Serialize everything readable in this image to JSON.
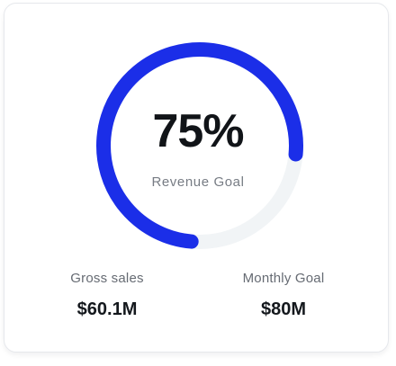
{
  "gauge": {
    "percent_text": "75%",
    "progress_fraction": 0.75,
    "label": "Revenue Goal",
    "progress_color": "#1b2ee8",
    "track_color": "#f1f4f6"
  },
  "stats": {
    "gross": {
      "label": "Gross sales",
      "value": "$60.1M"
    },
    "goal": {
      "label": "Monthly Goal",
      "value": "$80M"
    }
  }
}
